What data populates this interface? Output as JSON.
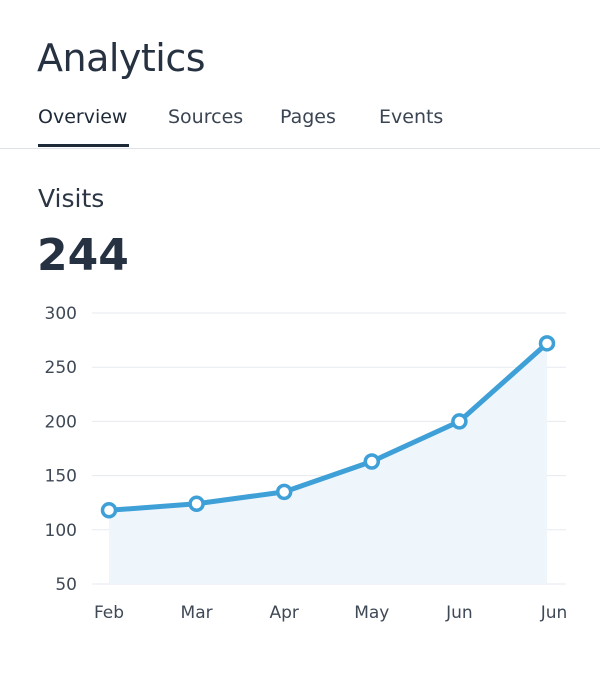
{
  "header": {
    "title": "Analytics"
  },
  "tabs": [
    {
      "label": "Overview",
      "active": true
    },
    {
      "label": "Sources",
      "active": false
    },
    {
      "label": "Pages",
      "active": false
    },
    {
      "label": "Events",
      "active": false
    }
  ],
  "metric": {
    "label": "Visits",
    "value": "244"
  },
  "colors": {
    "line": "#3fa0d8",
    "area_fill": "#eef6fc",
    "gridline": "#e6eaef",
    "text_dark": "#263241"
  },
  "chart_data": {
    "type": "line",
    "categories": [
      "Feb",
      "Mar",
      "Apr",
      "May",
      "Jun",
      "Jun"
    ],
    "series": [
      {
        "values": [
          118,
          124,
          135,
          163,
          200,
          272
        ]
      }
    ],
    "yticks": [
      50,
      100,
      150,
      200,
      250,
      300
    ],
    "ylim": [
      50,
      300
    ],
    "grid": true,
    "area_fill": true,
    "markers": "hollow-circle"
  }
}
